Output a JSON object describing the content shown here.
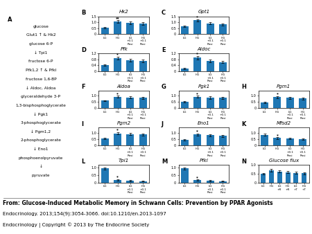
{
  "chart_data": [
    {
      "type": "text",
      "panel": "A",
      "annotations": [
        "glucose",
        "Glut1 ↑ & Hk2",
        "glucose 6-P",
        "↓ Tpi1",
        "fructose 6-P",
        "Pfk1,2 ↑ & Pfkl",
        "fructose 1,6-BP",
        "↓ Aldoc, Aldoa",
        "glyceraldehyde 3-P",
        "1,3-bisphosphoglycerate",
        "↓ Pgk1",
        "3-phosphoglycerate",
        "↓ Pgm1,2",
        "2-phosphoglycerate",
        "↓ Eno1",
        "phosphoenolpyruvate",
        "↓",
        "pyruvate"
      ]
    },
    {
      "type": "bar",
      "panel": "B",
      "title": "Hk2",
      "categories": [
        "LG",
        "HG",
        "LG\n+0.1\nRosi",
        "HG\n+0.1\nRosi"
      ],
      "values": [
        0.52,
        1.05,
        0.95,
        0.9
      ],
      "errors": [
        0.05,
        0.12,
        0.11,
        0.1
      ],
      "annotations": [
        {
          "text": "**",
          "category": "HG"
        }
      ],
      "ylim": [
        0,
        1.5
      ],
      "yticks": [
        0,
        0.5,
        {
          "value": 1.0,
          "label": "1.0"
        },
        1.5
      ]
    },
    {
      "type": "bar",
      "panel": "C",
      "title": "Gpt1",
      "categories": [
        "LG",
        "HG",
        "LG\n+0.1\nRosi",
        "HG\n+0.1\nRosi"
      ],
      "values": [
        0.68,
        1.18,
        0.92,
        0.83
      ],
      "errors": [
        0.06,
        0.09,
        0.1,
        0.09
      ],
      "annotations": [
        {
          "text": "*",
          "category": "HG"
        }
      ],
      "ylim": [
        0,
        1.5
      ],
      "yticks": [
        0,
        0.5,
        {
          "value": 1.0,
          "label": "1.0"
        },
        1.5
      ]
    },
    {
      "type": "bar",
      "panel": "D",
      "title": "Pfk",
      "categories": [
        "LG",
        "HG",
        "LG\n+0.1\nRosi",
        "HG\n+0.1\nRosi"
      ],
      "values": [
        0.42,
        0.88,
        0.75,
        0.7
      ],
      "errors": [
        0.05,
        0.09,
        0.09,
        0.08
      ],
      "annotations": [
        {
          "text": "*",
          "category": "HG"
        }
      ],
      "ylim": [
        0,
        1.2
      ],
      "yticks": [
        0,
        0.4,
        0.8,
        1.2
      ]
    },
    {
      "type": "bar",
      "panel": "E",
      "title": "Aldoc",
      "categories": [
        "LG",
        "HG",
        "LG\n+0.1\nRosi",
        "HG\n+0.1\nRosi"
      ],
      "values": [
        0.18,
        0.92,
        0.68,
        0.62
      ],
      "errors": [
        0.04,
        0.11,
        0.09,
        0.08
      ],
      "annotations": [
        {
          "text": "*",
          "category": "HG"
        }
      ],
      "ylim": [
        0,
        1.2
      ],
      "yticks": [
        0,
        0.4,
        0.8,
        1.2
      ]
    },
    {
      "type": "bar",
      "panel": "F",
      "title": "Aldoa",
      "categories": [
        "LG",
        "HG",
        "LG\n+0.1\nRosi",
        "HG\n+0.1\nRosi"
      ],
      "values": [
        0.6,
        0.92,
        0.85,
        0.82
      ],
      "errors": [
        0.05,
        0.07,
        0.08,
        0.08
      ],
      "annotations": [
        {
          "text": "*",
          "category": "HG"
        }
      ],
      "ylim": [
        0,
        1.4
      ],
      "yticks": [
        0,
        0.5,
        {
          "value": 1.0,
          "label": "1.0"
        }
      ]
    },
    {
      "type": "bar",
      "panel": "G",
      "title": "Pgk1",
      "categories": [
        "LG",
        "HG",
        "LG\n+0.1\nRosi",
        "HG\n+0.1\nRosi"
      ],
      "values": [
        0.52,
        0.92,
        0.85,
        0.82
      ],
      "errors": [
        0.05,
        0.08,
        0.09,
        0.08
      ],
      "annotations": [
        {
          "text": "*",
          "category": "HG"
        }
      ],
      "ylim": [
        0,
        1.4
      ],
      "yticks": [
        0,
        0.5,
        {
          "value": 1.0,
          "label": "1.0"
        }
      ]
    },
    {
      "type": "bar",
      "panel": "H",
      "title": "Pgm1",
      "categories": [
        "LG",
        "HG",
        "LG\n+0.1\nRosi",
        "HG\n+0.1\nRosi"
      ],
      "values": [
        0.48,
        0.88,
        0.82,
        0.78
      ],
      "errors": [
        0.05,
        0.07,
        0.09,
        0.08
      ],
      "annotations": [
        {
          "text": "*",
          "category": "HG"
        }
      ],
      "ylim": [
        0,
        1.4
      ],
      "yticks": [
        0,
        0.5,
        {
          "value": 1.0,
          "label": "1.0"
        }
      ]
    },
    {
      "type": "bar",
      "panel": "I",
      "title": "Pgm2",
      "categories": [
        "LG",
        "HG",
        "LG\n+0.1\nRosi",
        "HG\n+0.1\nRosi"
      ],
      "values": [
        0.55,
        0.96,
        0.9,
        0.87
      ],
      "errors": [
        0.05,
        0.09,
        0.1,
        0.09
      ],
      "annotations": [
        {
          "text": "*",
          "category": "HG"
        }
      ],
      "ylim": [
        0,
        1.4
      ],
      "yticks": [
        0,
        0.5,
        {
          "value": 1.0,
          "label": "1.0"
        }
      ]
    },
    {
      "type": "bar",
      "panel": "J",
      "title": "Eno1",
      "categories": [
        "LG",
        "HG",
        "LG\n+0.1\nRosi",
        "HG\n+0.1\nRosi"
      ],
      "values": [
        0.44,
        0.86,
        0.8,
        0.75
      ],
      "errors": [
        0.05,
        0.08,
        0.09,
        0.08
      ],
      "annotations": [
        {
          "text": "*",
          "category": "HG"
        }
      ],
      "ylim": [
        0,
        1.4
      ],
      "yticks": [
        0,
        0.5,
        {
          "value": 1.0,
          "label": "1.0"
        }
      ]
    },
    {
      "type": "bar",
      "panel": "K",
      "title": "Mfsd2",
      "categories": [
        "LG",
        "HG",
        "LG\n+0.1\nRosi",
        "HG\n+0.1\nRosi"
      ],
      "values": [
        0.85,
        0.58,
        0.55,
        0.5
      ],
      "errors": [
        0.07,
        0.06,
        0.07,
        0.06
      ],
      "annotations": [
        {
          "text": "*",
          "category": "HG"
        }
      ],
      "ylim": [
        0,
        1.4
      ],
      "yticks": [
        0,
        0.5,
        {
          "value": 1.0,
          "label": "1.0"
        }
      ]
    },
    {
      "type": "bar",
      "panel": "L",
      "title": "Tpi1",
      "categories": [
        "LG",
        "HG",
        "LG\n+0.1\nRosi",
        "HG\n+0.1\nRosi"
      ],
      "values": [
        0.96,
        0.18,
        0.12,
        0.1
      ],
      "errors": [
        0.08,
        0.04,
        0.03,
        0.03
      ],
      "annotations": [
        {
          "text": "*",
          "category": "HG"
        }
      ],
      "ylim": [
        0,
        1.2
      ],
      "yticks": [
        0,
        0.5,
        {
          "value": 1.0,
          "label": "1.0"
        }
      ]
    },
    {
      "type": "bar",
      "panel": "M",
      "title": "Pfkl",
      "categories": [
        "LG",
        "HG",
        "LG\n+0.1\nRosi",
        "HG\n+0.1\nRosi"
      ],
      "values": [
        0.96,
        0.16,
        0.12,
        0.09
      ],
      "errors": [
        0.08,
        0.04,
        0.03,
        0.03
      ],
      "annotations": [
        {
          "text": "*",
          "category": "HG"
        }
      ],
      "ylim": [
        0,
        1.2
      ],
      "yticks": [
        0,
        0.5,
        {
          "value": 1.0,
          "label": "1.0"
        }
      ]
    },
    {
      "type": "bar",
      "panel": "N",
      "title": "Glucose flux",
      "categories": [
        "LG",
        "HG",
        "LG\n+R",
        "HG\n+R",
        "LG\n+T",
        "HG\n+T"
      ],
      "values": [
        0.5,
        0.68,
        0.63,
        0.58,
        0.55,
        0.52
      ],
      "errors": [
        0.05,
        0.07,
        0.06,
        0.06,
        0.05,
        0.05
      ],
      "ylim": [
        0,
        1.0
      ],
      "yticks": [
        0,
        0.5,
        {
          "value": 1.0,
          "label": "1.0"
        }
      ]
    }
  ],
  "annotations": [
    "From: Glucose-Induced Metabolic Memory in Schwann Cells: Prevention by PPAR Agonists",
    "Endocrinology. 2013;154(9):3054-3066. doi:10.1210/en.2013-1097",
    "Endocrinology | Copyright © 2013 by The Endocrine Society"
  ]
}
